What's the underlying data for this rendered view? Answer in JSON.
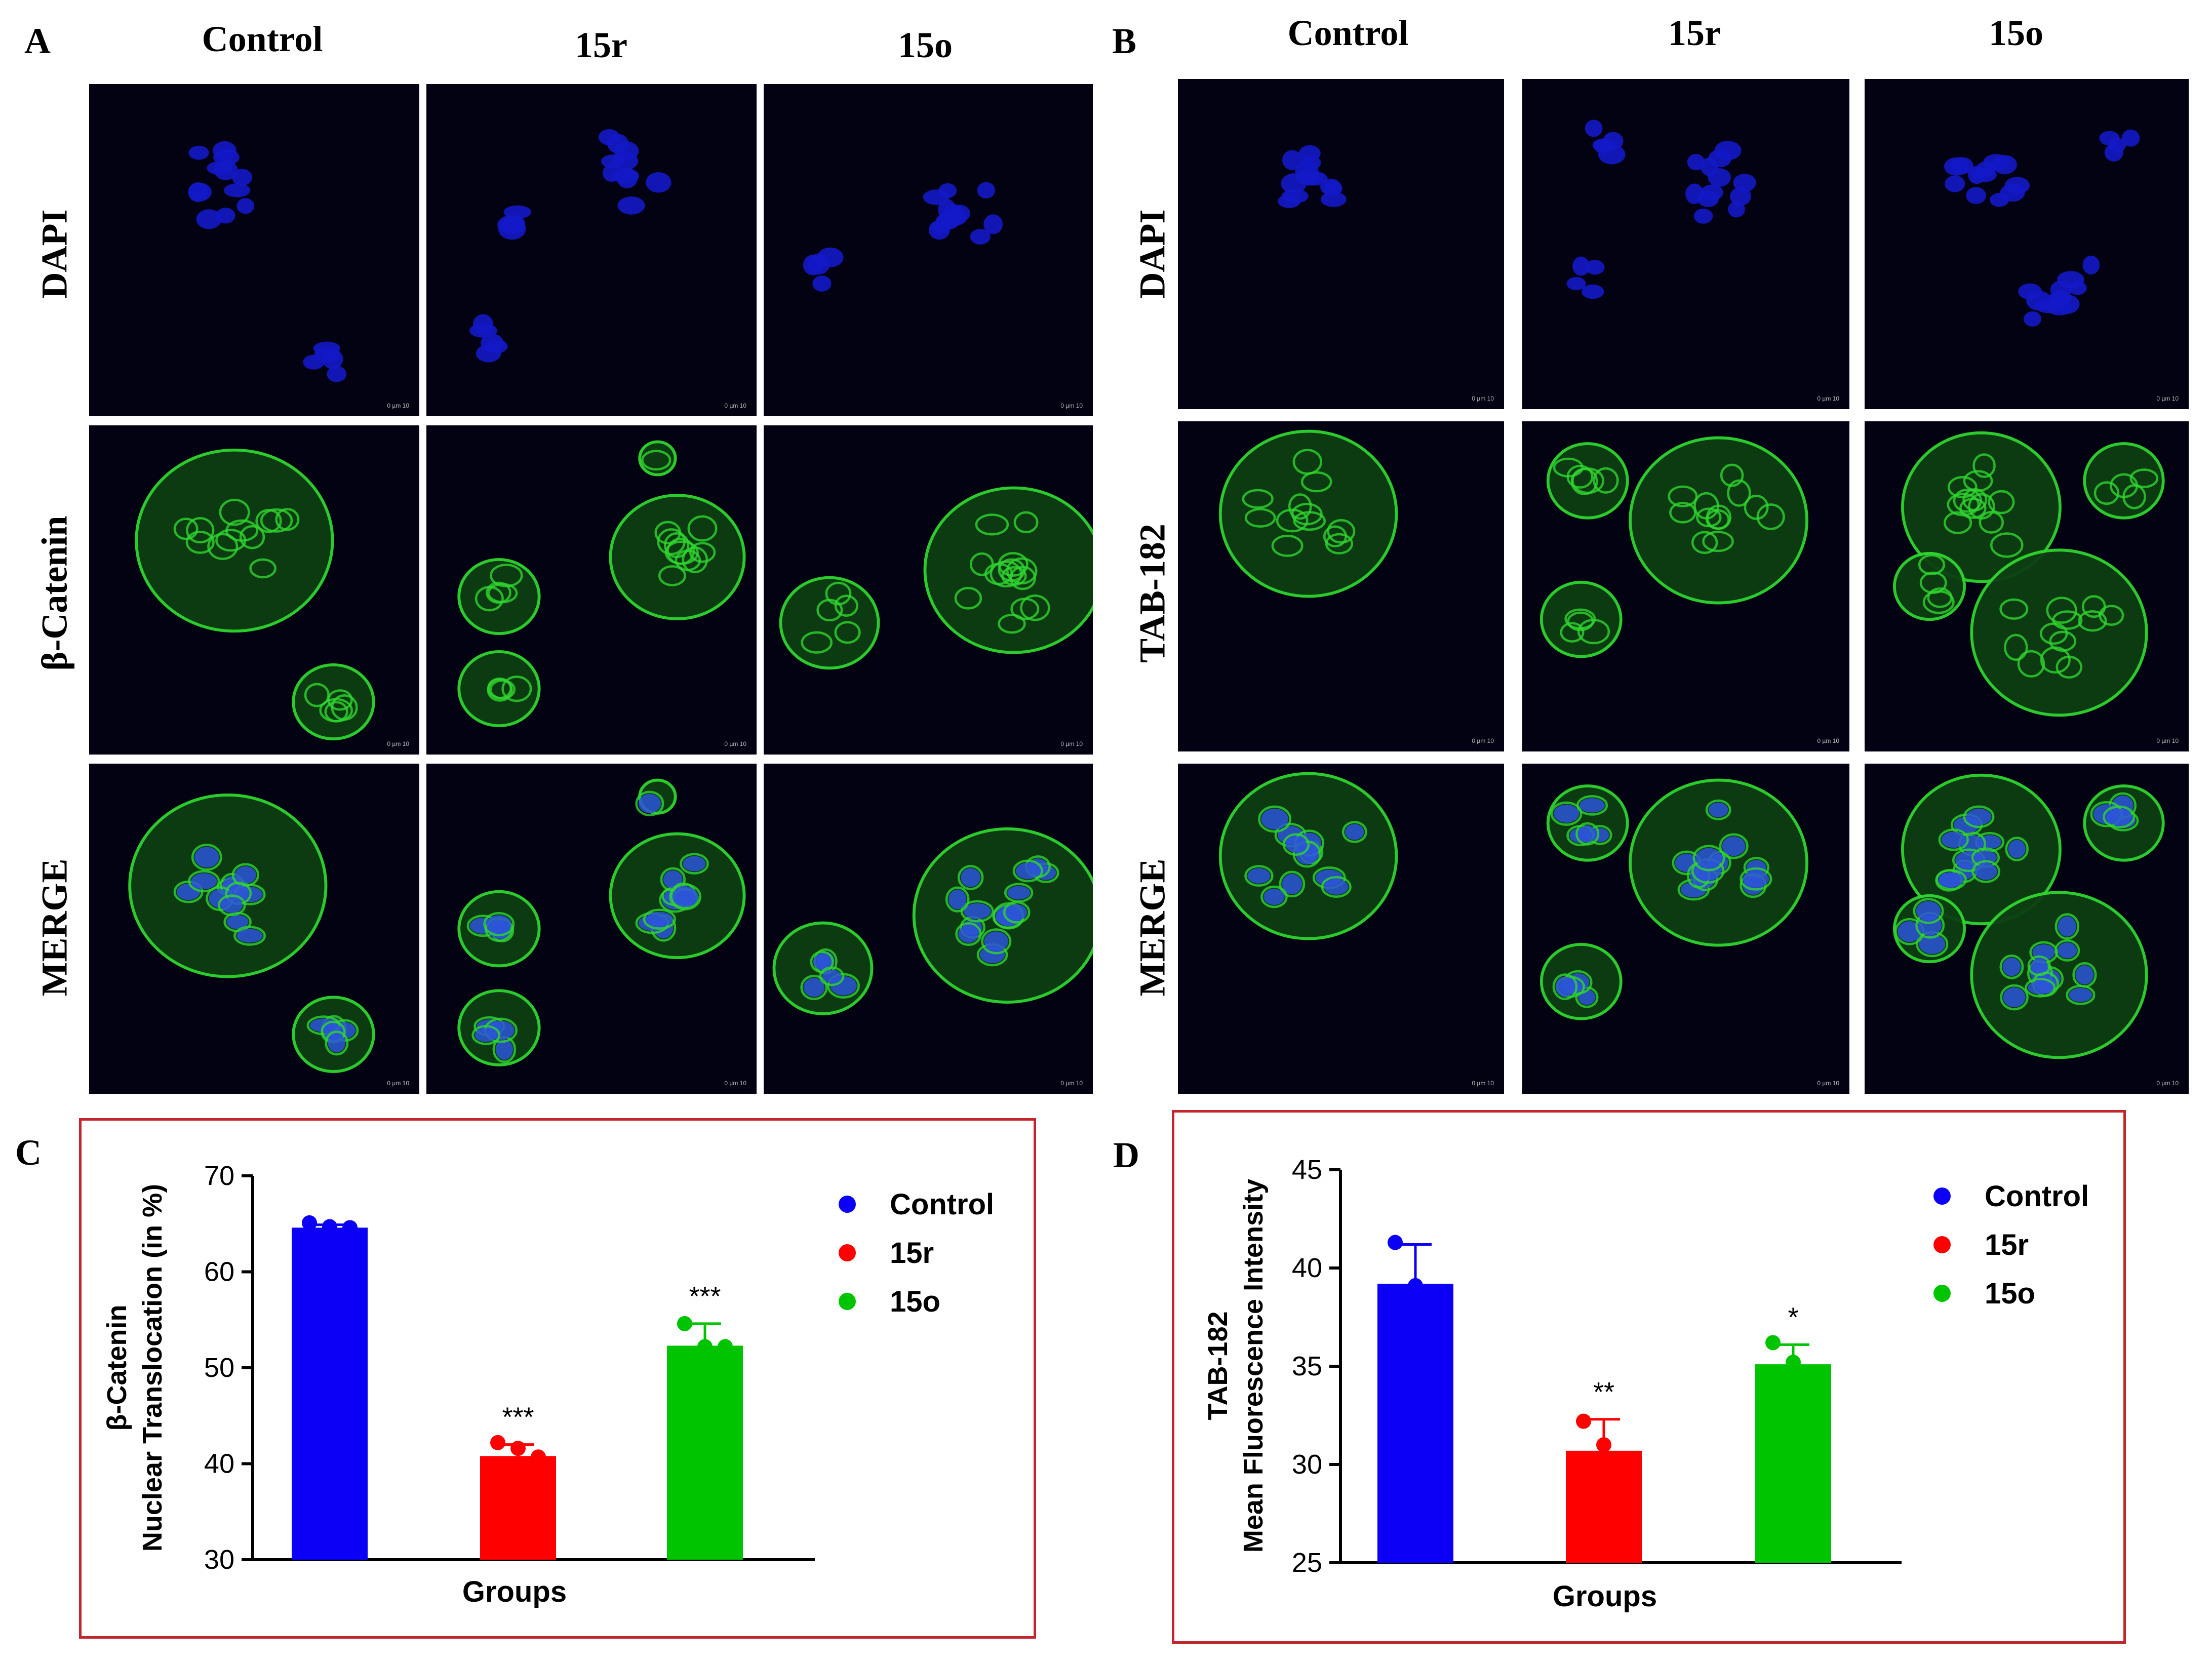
{
  "panel_a": {
    "letter": "A",
    "columns": [
      "Control",
      "15r",
      "15o"
    ],
    "rows": [
      "DAPI",
      "β-Catenin",
      "MERGE"
    ],
    "scale_label": "0   µm   10"
  },
  "panel_b": {
    "letter": "B",
    "columns": [
      "Control",
      "15r",
      "15o"
    ],
    "rows": [
      "DAPI",
      "TAB-182",
      "MERGE"
    ],
    "scale_label": "0   µm   10"
  },
  "colors": {
    "control": "#0b00f5",
    "r15": "#ff0000",
    "o15": "#00c400",
    "frame": "#c0262b",
    "dapi": "#1418c8",
    "green": "#2fd62f"
  },
  "chart_data": [
    {
      "panel": "C",
      "type": "bar",
      "categories": [
        "Control",
        "15r",
        "15o"
      ],
      "values": [
        64.6,
        40.8,
        52.3
      ],
      "errors": [
        0.3,
        1.2,
        2.3
      ],
      "points": [
        [
          65.1,
          64.7,
          64.6
        ],
        [
          42.2,
          41.6,
          40.7
        ],
        [
          54.6,
          52.2,
          52.2
        ]
      ],
      "significance": [
        "",
        "***",
        "***"
      ],
      "xlabel": "Groups",
      "ylabel_line1": "β-Catenin",
      "ylabel_line2": "Nuclear Translocation (in %)",
      "ylim": [
        30,
        70
      ],
      "yticks": [
        "30",
        "40",
        "50",
        "60",
        "70"
      ],
      "legend": [
        "Control",
        "15r",
        "15o"
      ],
      "legend_position": "top-right"
    },
    {
      "panel": "D",
      "type": "bar",
      "categories": [
        "Control",
        "15r",
        "15o"
      ],
      "values": [
        39.2,
        30.7,
        35.1
      ],
      "errors": [
        2.0,
        1.6,
        1.0
      ],
      "points": [
        [
          41.3,
          39.1,
          37.3
        ],
        [
          32.2,
          31.0,
          29.0
        ],
        [
          36.2,
          35.2,
          34.0
        ]
      ],
      "significance": [
        "",
        "**",
        "*"
      ],
      "xlabel": "Groups",
      "ylabel_line1": "TAB-182",
      "ylabel_line2": "Mean Fluorescence Intensity",
      "ylim": [
        25,
        45
      ],
      "yticks": [
        "25",
        "30",
        "35",
        "40",
        "45"
      ],
      "legend": [
        "Control",
        "15r",
        "15o"
      ],
      "legend_position": "top-right"
    }
  ]
}
